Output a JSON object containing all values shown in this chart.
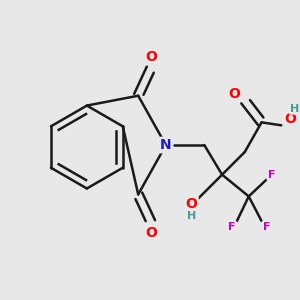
{
  "bg_color": "#e8e8e8",
  "bond_color": "#1a1a1a",
  "bond_width": 1.8,
  "atom_colors": {
    "O": "#ff0000",
    "N": "#1a1acc",
    "F": "#cc00cc",
    "H_OH": "#4a9999",
    "C": "#1a1a1a"
  },
  "font_size_atom": 10,
  "font_size_small": 8
}
